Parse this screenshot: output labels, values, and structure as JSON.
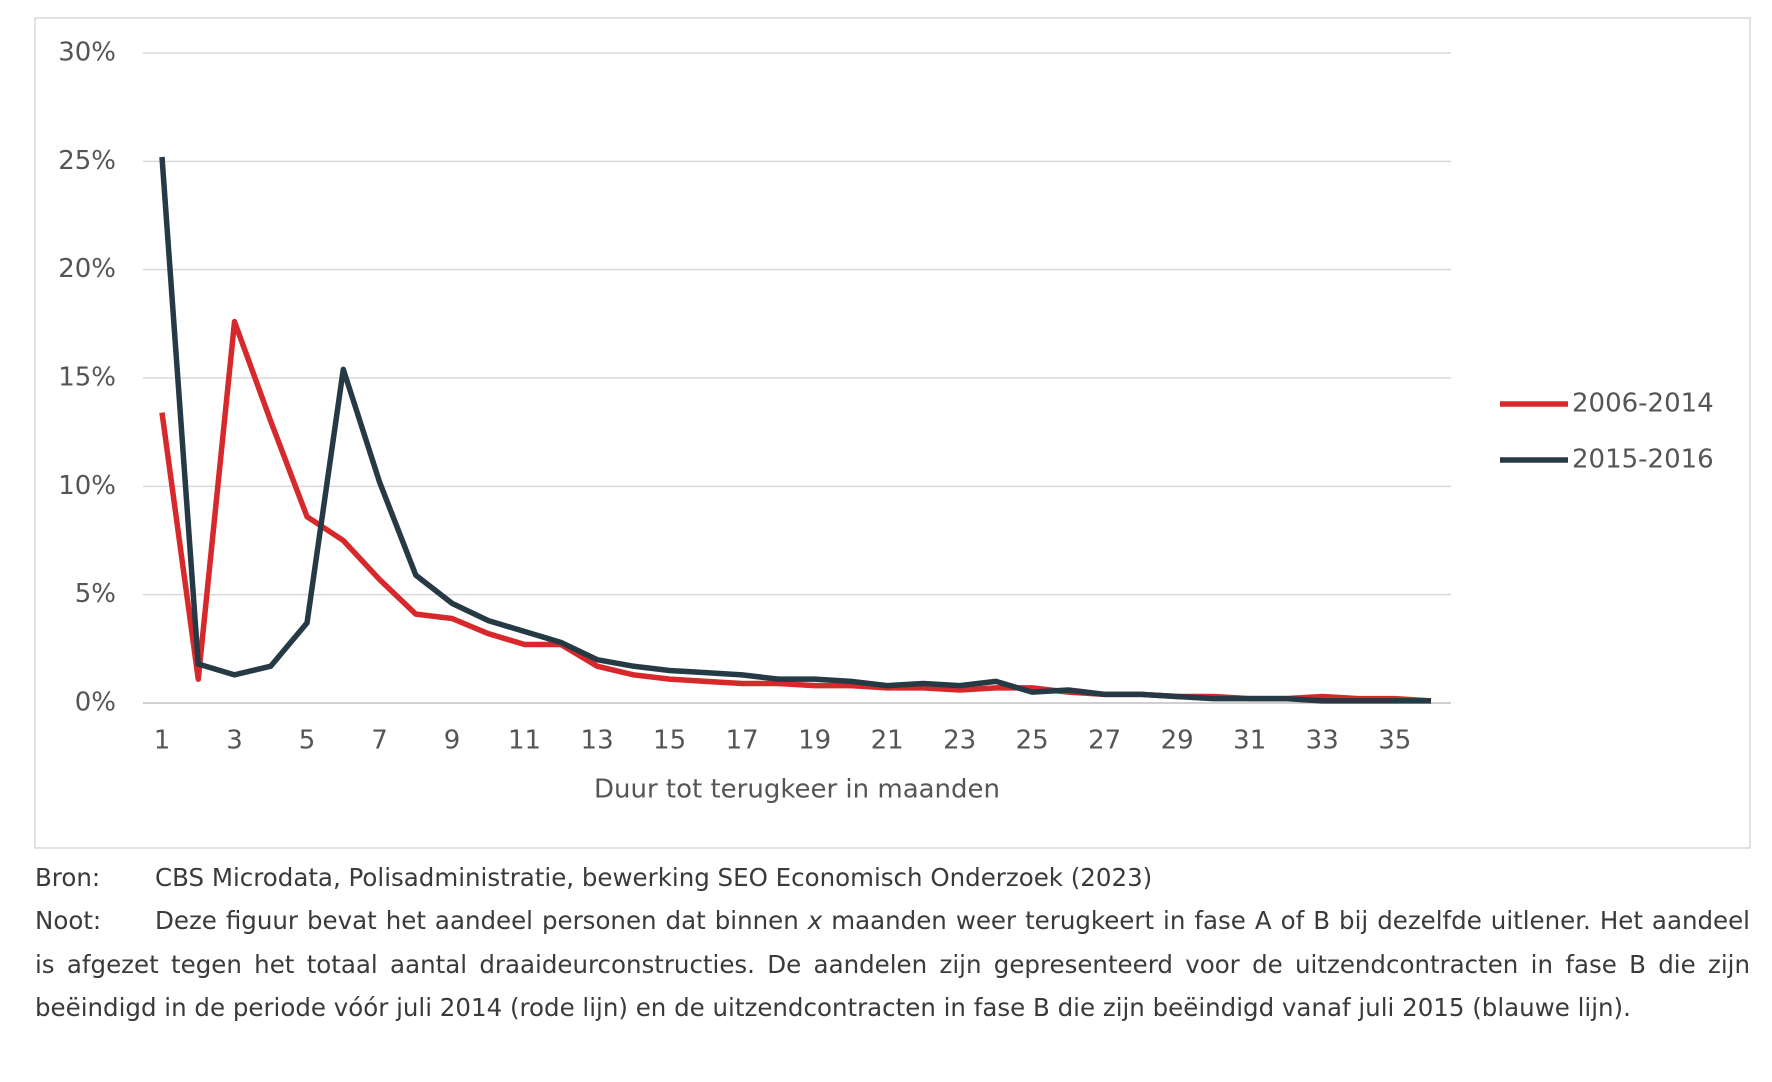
{
  "chart_data": {
    "type": "line",
    "x": [
      1,
      2,
      3,
      4,
      5,
      6,
      7,
      8,
      9,
      10,
      11,
      12,
      13,
      14,
      15,
      16,
      17,
      18,
      19,
      20,
      21,
      22,
      23,
      24,
      25,
      26,
      27,
      28,
      29,
      30,
      31,
      32,
      33,
      34,
      35,
      36
    ],
    "xlim": [
      1,
      36
    ],
    "xticks": [
      1,
      3,
      5,
      7,
      9,
      11,
      13,
      15,
      17,
      19,
      21,
      23,
      25,
      27,
      29,
      31,
      33,
      35
    ],
    "x_label": "Duur tot terugkeer in maanden",
    "ylim": [
      0,
      30
    ],
    "yticks": [
      {
        "value": 0,
        "label": "0%"
      },
      {
        "value": 5,
        "label": "5%"
      },
      {
        "value": 10,
        "label": "10%"
      },
      {
        "value": 15,
        "label": "15%"
      },
      {
        "value": 20,
        "label": "20%"
      },
      {
        "value": 25,
        "label": "25%"
      },
      {
        "value": 30,
        "label": "30%"
      }
    ],
    "grid": true,
    "legend": "right",
    "series": [
      {
        "name": "2006-2014",
        "color": "#d7292c",
        "values": [
          13.4,
          1.1,
          17.6,
          13.0,
          8.6,
          7.5,
          5.7,
          4.1,
          3.9,
          3.2,
          2.7,
          2.7,
          1.7,
          1.3,
          1.1,
          1.0,
          0.9,
          0.9,
          0.8,
          0.8,
          0.7,
          0.7,
          0.6,
          0.7,
          0.7,
          0.5,
          0.4,
          0.4,
          0.3,
          0.3,
          0.2,
          0.2,
          0.3,
          0.2,
          0.2,
          0.1
        ]
      },
      {
        "name": "2015-2016",
        "color": "#263a45",
        "values": [
          25.2,
          1.8,
          1.3,
          1.7,
          3.7,
          15.4,
          10.2,
          5.9,
          4.6,
          3.8,
          3.3,
          2.8,
          2.0,
          1.7,
          1.5,
          1.4,
          1.3,
          1.1,
          1.1,
          1.0,
          0.8,
          0.9,
          0.8,
          1.0,
          0.5,
          0.6,
          0.4,
          0.4,
          0.3,
          0.2,
          0.2,
          0.2,
          0.1,
          0.1,
          0.1,
          0.1
        ]
      }
    ]
  },
  "footer": {
    "source_label": "Bron:",
    "source": "CBS Microdata, Polisadministratie, bewerking SEO Economisch Onderzoek (2023)",
    "note_label": "Noot:",
    "note_parts": [
      "Deze figuur bevat het aandeel personen dat binnen ",
      "x",
      " maanden weer terugkeert in fase A of B bij dezelfde uitlener. Het aandeel is afgezet tegen het totaal aantal draaideurconstructies. De aandelen zijn gepresenteerd voor de uitzendcontracten in fase B die zijn beëindigd in de periode vóór juli 2014 (rode lijn) en de uitzendcontracten in fase B die zijn beëindigd vanaf juli 2015 (blauwe lijn)."
    ]
  }
}
